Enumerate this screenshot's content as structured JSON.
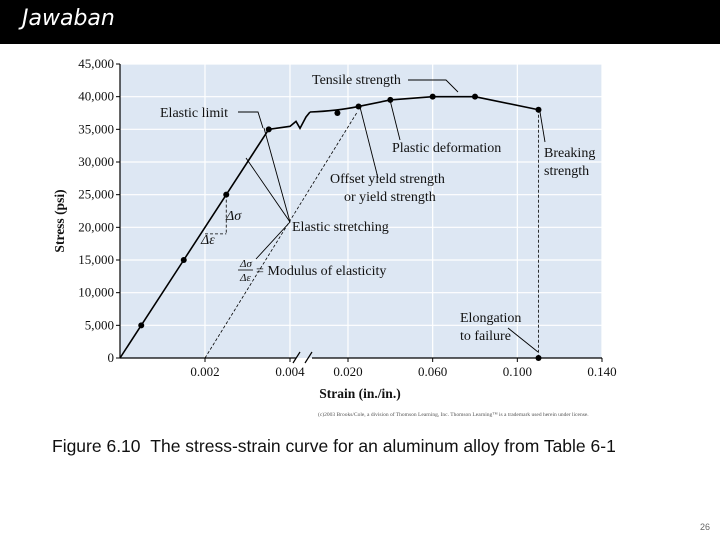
{
  "header": {
    "title": "Jawaban"
  },
  "caption": {
    "label": "Figure 6.10",
    "text": "The stress-strain curve for an aluminum alloy from Table 6-1"
  },
  "copyright": "(c)2003 Brooks/Cole, a division of Thomson Learning, Inc. Thomson Learning™ is a trademark used herein under license.",
  "page_number": "26",
  "colors": {
    "plot_bg": "#dde7f3",
    "grid": "#ffffff",
    "curve": "#000000",
    "header_bg": "#000000"
  },
  "chart_data": {
    "type": "line",
    "xlabel": "Strain (in./in.)",
    "ylabel": "Stress (psi)",
    "ylim": [
      0,
      45000
    ],
    "y_ticks": [
      0,
      5000,
      10000,
      15000,
      20000,
      25000,
      30000,
      35000,
      40000,
      45000
    ],
    "y_tick_labels": [
      "0",
      "5,000",
      "10,000",
      "15,000",
      "20,000",
      "25,000",
      "30,000",
      "35,000",
      "40,000",
      "45,000"
    ],
    "x_axis_broken_at": 0.004,
    "x_segments": [
      {
        "range": [
          0,
          0.004
        ],
        "ticks": [
          0.002,
          0.004
        ],
        "tick_labels": [
          "0.002",
          "0.004"
        ]
      },
      {
        "range": [
          0,
          0.14
        ],
        "ticks": [
          0.02,
          0.06,
          0.1,
          0.14
        ],
        "tick_labels": [
          "0.020",
          "0.060",
          "0.100",
          "0.140"
        ]
      }
    ],
    "grid": true,
    "series": [
      {
        "elastic_points": [
          [
            0.0005,
            5000
          ],
          [
            0.0015,
            15000
          ],
          [
            0.0025,
            25000
          ],
          [
            0.0035,
            35000
          ]
        ],
        "plastic_points": [
          [
            0.015,
            37500
          ],
          [
            0.025,
            38500
          ],
          [
            0.04,
            39500
          ],
          [
            0.06,
            40000
          ],
          [
            0.08,
            40000
          ],
          [
            0.11,
            38000
          ]
        ]
      }
    ],
    "breaking_point": [
      0.11,
      0
    ],
    "offset_line": {
      "start_strain": 0.002
    },
    "delta_sigma_label": "Δσ",
    "delta_epsilon_label": "Δε",
    "annotations": {
      "tensile": "Tensile strength",
      "elastic_limit": "Elastic limit",
      "plastic": "Plastic deformation",
      "breaking": [
        "Breaking",
        "strength"
      ],
      "offset": [
        "Offset yield strength",
        "or yield strength"
      ],
      "elastic_stretching": "Elastic stretching",
      "modulus_top": "Δσ",
      "modulus_bottom": "Δε",
      "modulus_text": "= Modulus of elasticity",
      "elongation": [
        "Elongation",
        "to failure"
      ]
    }
  }
}
